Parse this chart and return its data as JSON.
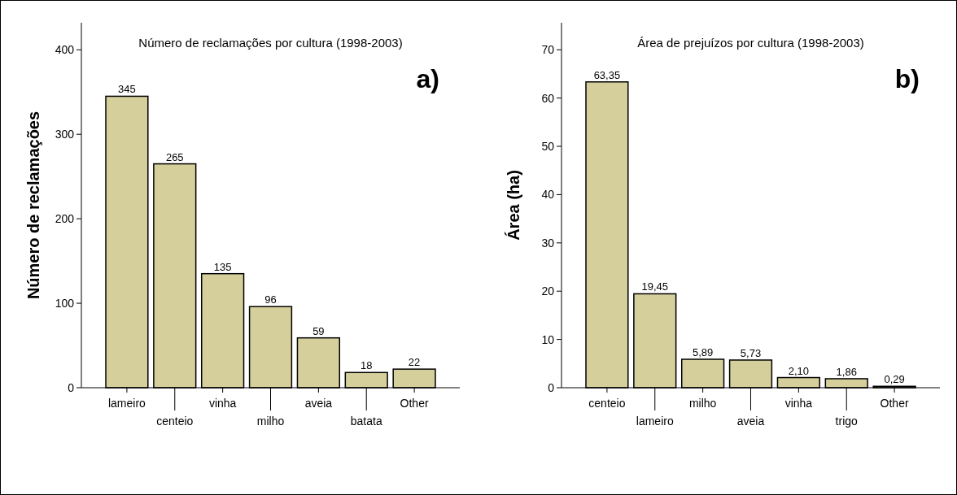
{
  "chart_data": [
    {
      "type": "bar",
      "title": "Número de reclamações por cultura (1998-2003)",
      "ylabel": "Número de reclamações",
      "categories": [
        "lameiro",
        "centeio",
        "vinha",
        "milho",
        "aveia",
        "batata",
        "Other"
      ],
      "values": [
        345,
        265,
        135,
        96,
        59,
        18,
        22
      ],
      "color": "#d4cf9b",
      "ylim": [
        0,
        432
      ],
      "yticks": [
        0,
        100,
        200,
        300,
        400
      ],
      "data_labels": true,
      "grid": false,
      "annotations": [
        "a)"
      ]
    },
    {
      "type": "bar",
      "title": "Área de prejuízos por cultura (1998-2003)",
      "ylabel": "Área (ha)",
      "categories": [
        "centeio",
        "lameiro",
        "milho",
        "aveia",
        "vinha",
        "trigo",
        "Other"
      ],
      "values": [
        63.35,
        19.45,
        5.89,
        5.73,
        2.1,
        1.86,
        0.29
      ],
      "value_labels": [
        "63,35",
        "19,45",
        "5,89",
        "5,73",
        "2,10",
        "1,86",
        "0,29"
      ],
      "color": "#d4cf9b",
      "ylim": [
        0,
        75.6
      ],
      "yticks": [
        0,
        10,
        20,
        30,
        40,
        50,
        60,
        70
      ],
      "grid": false,
      "annotations": [
        "b)"
      ]
    }
  ]
}
